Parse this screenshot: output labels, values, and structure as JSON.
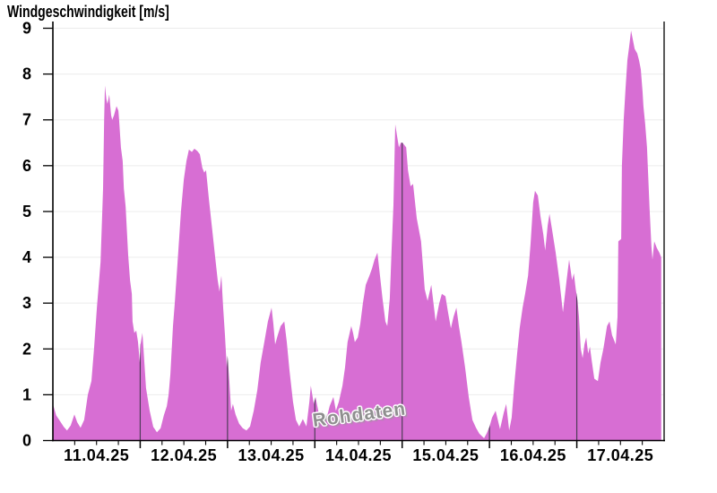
{
  "colors": {
    "background": "#ffffff",
    "area": "#d76ed3",
    "axis": "#000000",
    "grid": "#ececec",
    "day_boundary_line": "#4f3c59",
    "watermark": "#8f8f8f",
    "title_text": "#000000"
  },
  "chart_data": {
    "type": "area",
    "title": "Windgeschwindigkeit [m/s]",
    "watermark": "Rohdaten",
    "xlabel": "",
    "ylabel": "Windgeschwindigkeit [m/s]",
    "ylim": [
      0,
      9
    ],
    "y_ticks": [
      0,
      1,
      2,
      3,
      4,
      5,
      6,
      7,
      8,
      9
    ],
    "x_unit": "hours since 11.04.25 00:00",
    "xlim_hours": [
      0,
      168
    ],
    "x_tick_minor_interval_hours": 6,
    "x_day_boundaries_hours": [
      24,
      48,
      72,
      96,
      120,
      144
    ],
    "x_day_labels": [
      "11.04.25",
      "12.04.25",
      "13.04.25",
      "14.04.25",
      "15.04.25",
      "16.04.25",
      "17.04.25"
    ],
    "grid": "horizontal-light",
    "legend": "none",
    "series": [
      {
        "name": "Windgeschwindigkeit Rohdaten",
        "color": "#d76ed3",
        "points": [
          [
            0,
            0.8
          ],
          [
            0.9,
            0.55
          ],
          [
            2,
            0.42
          ],
          [
            3,
            0.3
          ],
          [
            3.9,
            0.22
          ],
          [
            4.9,
            0.33
          ],
          [
            5.9,
            0.57
          ],
          [
            6.7,
            0.4
          ],
          [
            7.6,
            0.28
          ],
          [
            8.6,
            0.45
          ],
          [
            9.6,
            1.0
          ],
          [
            10.6,
            1.3
          ],
          [
            11.3,
            2.0
          ],
          [
            12.1,
            2.9
          ],
          [
            13.1,
            3.9
          ],
          [
            13.8,
            5.5
          ],
          [
            14.1,
            7.0
          ],
          [
            14.3,
            7.75
          ],
          [
            14.7,
            7.45
          ],
          [
            15,
            7.35
          ],
          [
            15.5,
            7.55
          ],
          [
            16,
            7.1
          ],
          [
            16.3,
            7.0
          ],
          [
            16.8,
            7.1
          ],
          [
            17.5,
            7.3
          ],
          [
            18,
            7.2
          ],
          [
            18.2,
            7.0
          ],
          [
            18.7,
            6.4
          ],
          [
            19.2,
            6.1
          ],
          [
            19.5,
            5.5
          ],
          [
            20,
            5.1
          ],
          [
            20.4,
            4.5
          ],
          [
            20.7,
            4.05
          ],
          [
            21.2,
            3.5
          ],
          [
            21.7,
            3.2
          ],
          [
            21.9,
            2.6
          ],
          [
            22.4,
            2.35
          ],
          [
            22.9,
            2.4
          ],
          [
            23.4,
            2.15
          ],
          [
            23.9,
            1.7
          ],
          [
            24.1,
            2.1
          ],
          [
            24.6,
            2.35
          ],
          [
            24.9,
            2.0
          ],
          [
            25.6,
            1.15
          ],
          [
            26.6,
            0.65
          ],
          [
            27.6,
            0.3
          ],
          [
            28.6,
            0.18
          ],
          [
            29.6,
            0.27
          ],
          [
            30.5,
            0.55
          ],
          [
            31.3,
            0.75
          ],
          [
            31.8,
            1.0
          ],
          [
            32.3,
            1.45
          ],
          [
            33,
            2.5
          ],
          [
            33.5,
            3.0
          ],
          [
            34.2,
            3.8
          ],
          [
            35.2,
            5.0
          ],
          [
            36,
            5.7
          ],
          [
            36.7,
            6.1
          ],
          [
            37.4,
            6.35
          ],
          [
            38.2,
            6.3
          ],
          [
            38.9,
            6.37
          ],
          [
            39.7,
            6.32
          ],
          [
            40.4,
            6.25
          ],
          [
            41.1,
            5.95
          ],
          [
            41.6,
            5.85
          ],
          [
            42.1,
            5.9
          ],
          [
            42.9,
            5.25
          ],
          [
            43.8,
            4.6
          ],
          [
            44.6,
            4.0
          ],
          [
            45.3,
            3.5
          ],
          [
            45.8,
            3.25
          ],
          [
            46.3,
            3.6
          ],
          [
            46.8,
            2.9
          ],
          [
            47.3,
            2.3
          ],
          [
            47.8,
            1.6
          ],
          [
            48,
            1.85
          ],
          [
            48.5,
            1.3
          ],
          [
            49,
            0.65
          ],
          [
            49.5,
            0.8
          ],
          [
            50.2,
            0.57
          ],
          [
            51.2,
            0.37
          ],
          [
            52.2,
            0.27
          ],
          [
            53.2,
            0.22
          ],
          [
            54.2,
            0.31
          ],
          [
            55.2,
            0.65
          ],
          [
            56.2,
            1.1
          ],
          [
            57.1,
            1.7
          ],
          [
            58.1,
            2.15
          ],
          [
            59.1,
            2.6
          ],
          [
            60.1,
            2.9
          ],
          [
            60.6,
            2.55
          ],
          [
            61.1,
            2.1
          ],
          [
            61.8,
            2.3
          ],
          [
            62.6,
            2.5
          ],
          [
            63.6,
            2.6
          ],
          [
            64.3,
            2.15
          ],
          [
            65,
            1.55
          ],
          [
            66,
            0.85
          ],
          [
            66.8,
            0.45
          ],
          [
            67.7,
            0.31
          ],
          [
            68.7,
            0.47
          ],
          [
            69.7,
            0.31
          ],
          [
            70.5,
            0.85
          ],
          [
            70.9,
            1.2
          ],
          [
            71.7,
            0.8
          ],
          [
            72.2,
            0.95
          ],
          [
            72.7,
            0.75
          ],
          [
            73.4,
            0.47
          ],
          [
            74.1,
            0.65
          ],
          [
            75.1,
            0.45
          ],
          [
            76.1,
            0.76
          ],
          [
            77.1,
            0.95
          ],
          [
            77.8,
            0.65
          ],
          [
            78.6,
            0.85
          ],
          [
            79.6,
            1.2
          ],
          [
            80.3,
            1.6
          ],
          [
            81,
            2.15
          ],
          [
            82,
            2.5
          ],
          [
            82.5,
            2.35
          ],
          [
            83,
            2.15
          ],
          [
            83.8,
            2.25
          ],
          [
            84.5,
            2.55
          ],
          [
            85.2,
            3.0
          ],
          [
            86,
            3.4
          ],
          [
            87,
            3.6
          ],
          [
            87.7,
            3.75
          ],
          [
            88.4,
            3.95
          ],
          [
            89.2,
            4.1
          ],
          [
            89.7,
            3.75
          ],
          [
            90.6,
            3.1
          ],
          [
            91.4,
            2.6
          ],
          [
            91.9,
            2.5
          ],
          [
            92.6,
            3.1
          ],
          [
            93.1,
            4.15
          ],
          [
            93.6,
            5.15
          ],
          [
            93.9,
            6.2
          ],
          [
            94.1,
            6.9
          ],
          [
            94.6,
            6.65
          ],
          [
            95.1,
            6.4
          ],
          [
            95.6,
            6.5
          ],
          [
            96.1,
            6.5
          ],
          [
            96.6,
            6.45
          ],
          [
            97.1,
            6.4
          ],
          [
            97.6,
            5.9
          ],
          [
            98.3,
            5.55
          ],
          [
            99,
            5.6
          ],
          [
            100,
            4.85
          ],
          [
            101.2,
            4.35
          ],
          [
            102.2,
            3.3
          ],
          [
            103,
            3.05
          ],
          [
            104,
            3.4
          ],
          [
            105.2,
            2.6
          ],
          [
            106.2,
            3.0
          ],
          [
            106.9,
            3.2
          ],
          [
            107.9,
            3.15
          ],
          [
            108.6,
            2.8
          ],
          [
            109.4,
            2.45
          ],
          [
            110.1,
            2.7
          ],
          [
            110.9,
            2.9
          ],
          [
            111.6,
            2.5
          ],
          [
            112.3,
            2.15
          ],
          [
            113.3,
            1.6
          ],
          [
            114.3,
            0.95
          ],
          [
            115.3,
            0.45
          ],
          [
            116.3,
            0.28
          ],
          [
            117.2,
            0.15
          ],
          [
            118.5,
            0.05
          ],
          [
            119.2,
            0.15
          ],
          [
            120,
            0.3
          ],
          [
            120.7,
            0.5
          ],
          [
            121.7,
            0.65
          ],
          [
            122.9,
            0.25
          ],
          [
            123.9,
            0.6
          ],
          [
            124.6,
            0.8
          ],
          [
            125.4,
            0.22
          ],
          [
            126.1,
            0.5
          ],
          [
            126.8,
            1.2
          ],
          [
            127.6,
            1.9
          ],
          [
            128.3,
            2.45
          ],
          [
            129.1,
            2.9
          ],
          [
            129.8,
            3.2
          ],
          [
            130.6,
            3.6
          ],
          [
            131.3,
            4.3
          ],
          [
            132,
            5.2
          ],
          [
            132.5,
            5.45
          ],
          [
            133.3,
            5.35
          ],
          [
            134,
            4.9
          ],
          [
            134.8,
            4.5
          ],
          [
            135.3,
            4.15
          ],
          [
            136,
            4.7
          ],
          [
            136.5,
            4.95
          ],
          [
            137.2,
            4.6
          ],
          [
            138.2,
            4.1
          ],
          [
            139.2,
            3.5
          ],
          [
            140.2,
            2.8
          ],
          [
            141.2,
            3.5
          ],
          [
            141.9,
            3.95
          ],
          [
            142.7,
            3.5
          ],
          [
            143.2,
            3.65
          ],
          [
            143.7,
            3.3
          ],
          [
            144.2,
            3.05
          ],
          [
            144.6,
            2.7
          ],
          [
            145.1,
            2.0
          ],
          [
            145.6,
            1.8
          ],
          [
            146.1,
            2.1
          ],
          [
            146.6,
            2.25
          ],
          [
            147.1,
            1.9
          ],
          [
            147.6,
            2.05
          ],
          [
            148.1,
            1.75
          ],
          [
            148.8,
            1.35
          ],
          [
            149.8,
            1.3
          ],
          [
            150.5,
            1.7
          ],
          [
            151.3,
            2.0
          ],
          [
            152.3,
            2.5
          ],
          [
            153,
            2.6
          ],
          [
            153.7,
            2.3
          ],
          [
            154.7,
            2.1
          ],
          [
            155.2,
            2.7
          ],
          [
            155.4,
            4.35
          ],
          [
            156.2,
            4.4
          ],
          [
            156.4,
            6.0
          ],
          [
            156.9,
            7.0
          ],
          [
            157.4,
            7.7
          ],
          [
            157.9,
            8.3
          ],
          [
            158.4,
            8.6
          ],
          [
            158.9,
            8.95
          ],
          [
            159.4,
            8.75
          ],
          [
            159.9,
            8.55
          ],
          [
            160.6,
            8.45
          ],
          [
            161.1,
            8.3
          ],
          [
            161.6,
            8.1
          ],
          [
            162.1,
            7.6
          ],
          [
            162.3,
            7.3
          ],
          [
            162.8,
            6.9
          ],
          [
            163.3,
            6.4
          ],
          [
            164,
            5.05
          ],
          [
            164.5,
            4.25
          ],
          [
            164.8,
            3.95
          ],
          [
            165.3,
            4.35
          ],
          [
            166,
            4.2
          ],
          [
            166.7,
            4.1
          ],
          [
            167.2,
            4.0
          ]
        ]
      }
    ]
  }
}
